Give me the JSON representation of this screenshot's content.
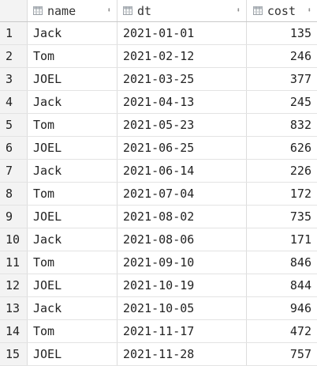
{
  "columns": [
    {
      "key": "name",
      "label": "name",
      "icon": "column-icon"
    },
    {
      "key": "dt",
      "label": "dt",
      "icon": "column-icon"
    },
    {
      "key": "cost",
      "label": "cost",
      "icon": "column-icon"
    }
  ],
  "sort_glyph": "⬍",
  "rows": [
    {
      "index": "1",
      "name": "Jack",
      "dt": "2021-01-01",
      "cost": "135"
    },
    {
      "index": "2",
      "name": "Tom",
      "dt": "2021-02-12",
      "cost": "246"
    },
    {
      "index": "3",
      "name": "JOEL",
      "dt": "2021-03-25",
      "cost": "377"
    },
    {
      "index": "4",
      "name": "Jack",
      "dt": "2021-04-13",
      "cost": "245"
    },
    {
      "index": "5",
      "name": "Tom",
      "dt": "2021-05-23",
      "cost": "832"
    },
    {
      "index": "6",
      "name": "JOEL",
      "dt": "2021-06-25",
      "cost": "626"
    },
    {
      "index": "7",
      "name": "Jack",
      "dt": "2021-06-14",
      "cost": "226"
    },
    {
      "index": "8",
      "name": "Tom",
      "dt": "2021-07-04",
      "cost": "172"
    },
    {
      "index": "9",
      "name": "JOEL",
      "dt": "2021-08-02",
      "cost": "735"
    },
    {
      "index": "10",
      "name": "Jack",
      "dt": "2021-08-06",
      "cost": "171"
    },
    {
      "index": "11",
      "name": "Tom",
      "dt": "2021-09-10",
      "cost": "846"
    },
    {
      "index": "12",
      "name": "JOEL",
      "dt": "2021-10-19",
      "cost": "844"
    },
    {
      "index": "13",
      "name": "Jack",
      "dt": "2021-10-05",
      "cost": "946"
    },
    {
      "index": "14",
      "name": "Tom",
      "dt": "2021-11-17",
      "cost": "472"
    },
    {
      "index": "15",
      "name": "JOEL",
      "dt": "2021-11-28",
      "cost": "757"
    }
  ]
}
